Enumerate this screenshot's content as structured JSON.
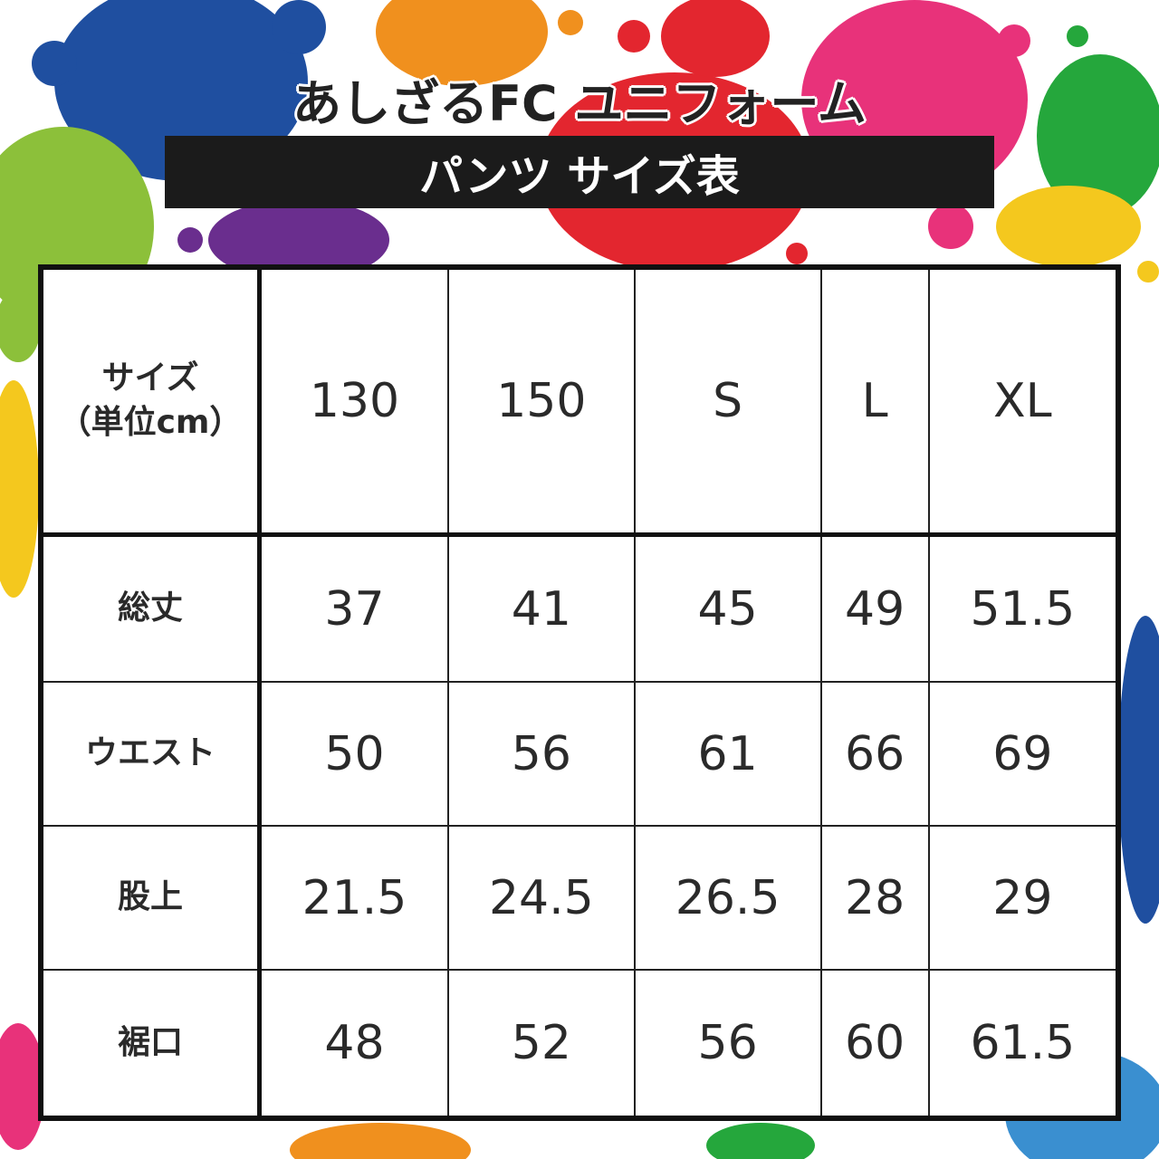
{
  "title": "あしざるFC ユニフォーム",
  "subtitle": "パンツ サイズ表",
  "table": {
    "corner_line1": "サイズ",
    "corner_line2": "（単位cm）",
    "sizes": [
      "130",
      "150",
      "S",
      "L",
      "XL"
    ],
    "rows": [
      {
        "label": "総丈",
        "values": [
          "37",
          "41",
          "45",
          "49",
          "51.5"
        ]
      },
      {
        "label": "ウエスト",
        "values": [
          "50",
          "56",
          "61",
          "66",
          "69"
        ]
      },
      {
        "label": "股上",
        "values": [
          "21.5",
          "24.5",
          "26.5",
          "28",
          "29"
        ]
      },
      {
        "label": "裾口",
        "values": [
          "48",
          "52",
          "56",
          "60",
          "61.5"
        ]
      }
    ]
  },
  "colors": {
    "blue": "#1f4fa0",
    "orange": "#f0901e",
    "red": "#e3262f",
    "pink": "#e8327a",
    "green": "#25a73c",
    "yellow": "#f4c81e",
    "lime": "#8cc03a",
    "purple": "#6a2e8e",
    "lightblue": "#3a8fd0"
  }
}
